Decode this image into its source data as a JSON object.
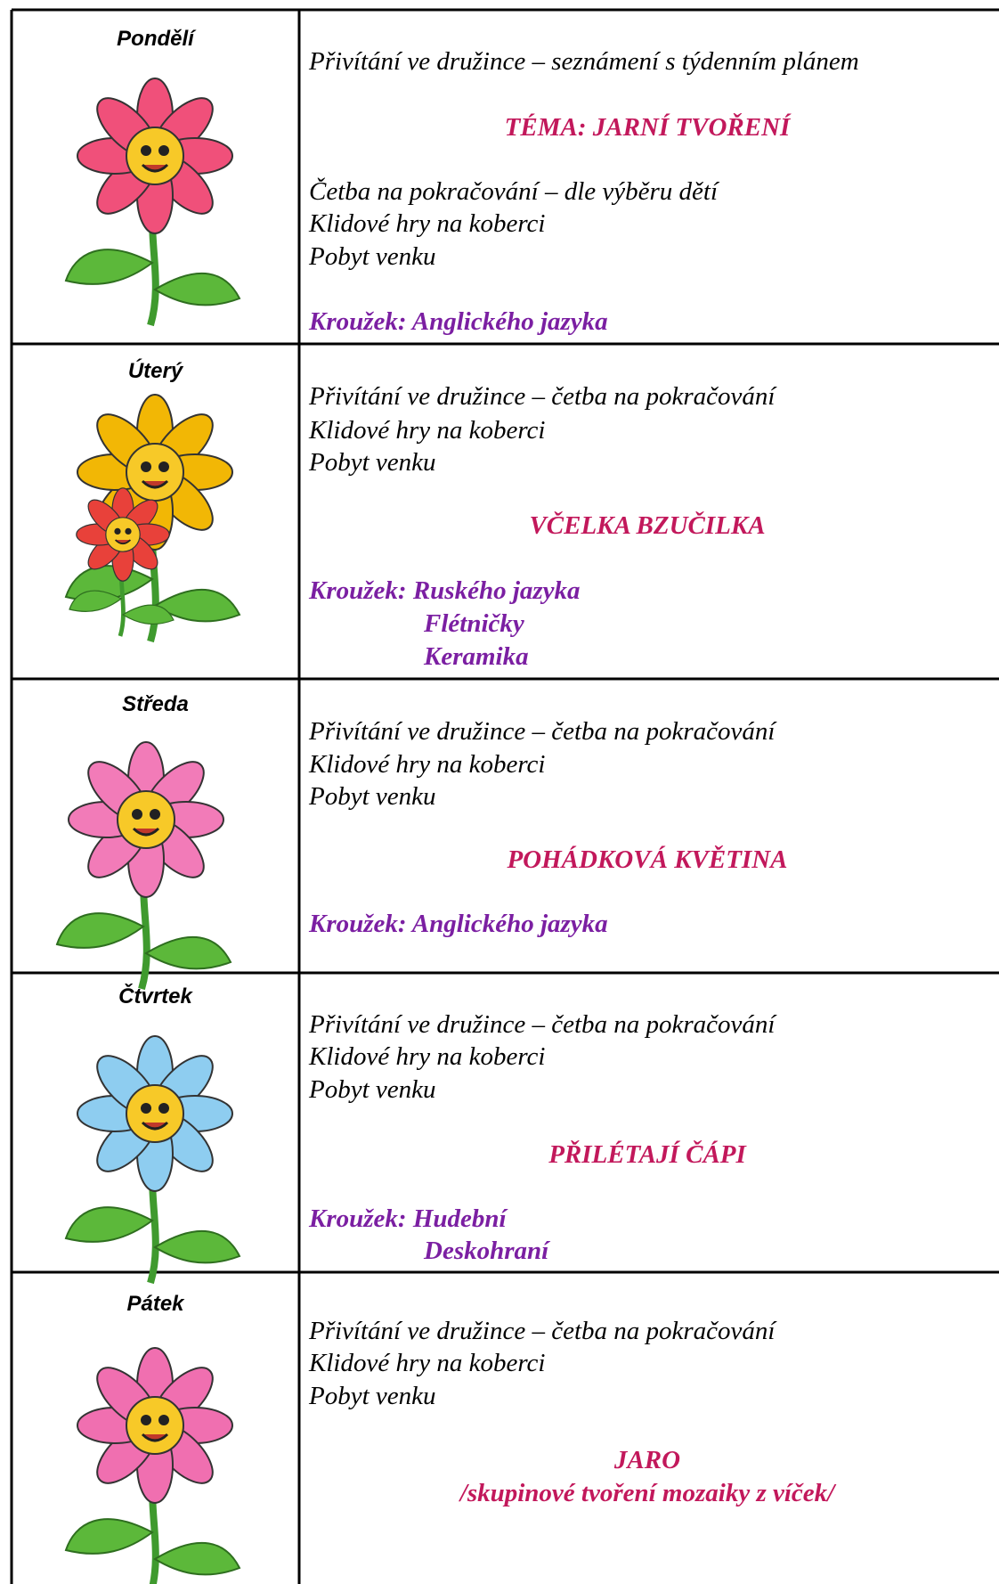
{
  "rows": [
    {
      "day": "Pondělí",
      "intro": "Přivítání ve družince – seznámení s týdenním plánem",
      "theme": [
        "TÉMA: JARNÍ TVOŘENÍ"
      ],
      "activities": [
        "Četba na pokračování – dle výběru dětí",
        "Klidové hry na koberci",
        "Pobyt venku"
      ],
      "club": [
        "Kroužek: Anglického jazyka"
      ]
    },
    {
      "day": "Úterý",
      "activities": [
        "Přivítání ve družince – četba na pokračování",
        "Klidové hry na koberci",
        "Pobyt venku"
      ],
      "theme": [
        "VČELKA BZUČILKA"
      ],
      "club": [
        "Kroužek: Ruského jazyka",
        "Flétničky",
        "Keramika"
      ]
    },
    {
      "day": "Středa",
      "activities": [
        "Přivítání ve družince – četba na pokračování",
        "Klidové hry na koberci",
        "Pobyt venku"
      ],
      "theme": [
        "POHÁDKOVÁ KVĚTINA"
      ],
      "club": [
        "Kroužek: Anglického jazyka"
      ]
    },
    {
      "day": "Čtvrtek",
      "activities": [
        "Přivítání ve družince – četba na pokračování",
        "Klidové hry na koberci",
        "Pobyt venku"
      ],
      "theme": [
        "PŘILÉTAJÍ ČÁPI"
      ],
      "club": [
        "Kroužek: Hudební",
        "Deskohraní"
      ]
    },
    {
      "day": "Pátek",
      "activities": [
        "Přivítání ve družince – četba na pokračování",
        "Klidové hry na koberci",
        "Pobyt venku"
      ],
      "theme": [
        "JARO",
        "/skupinové tvoření mozaiky z víček/"
      ]
    }
  ]
}
